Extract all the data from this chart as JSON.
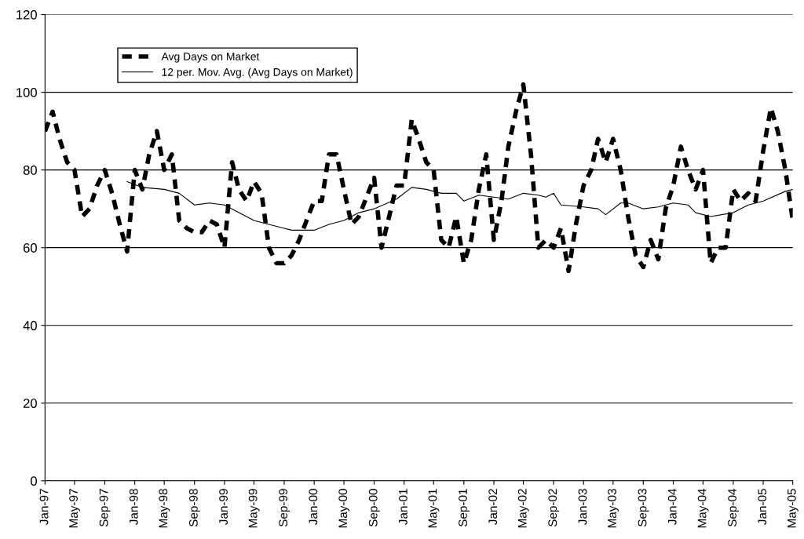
{
  "chart_data": {
    "type": "line",
    "x": [
      "1997-01",
      "1997-02",
      "1997-03",
      "1997-04",
      "1997-05",
      "1997-06",
      "1997-07",
      "1997-08",
      "1997-09",
      "1997-10",
      "1997-11",
      "1997-12",
      "1998-01",
      "1998-02",
      "1998-03",
      "1998-04",
      "1998-05",
      "1998-06",
      "1998-07",
      "1998-08",
      "1998-09",
      "1998-10",
      "1998-11",
      "1998-12",
      "1999-01",
      "1999-02",
      "1999-03",
      "1999-04",
      "1999-05",
      "1999-06",
      "1999-07",
      "1999-08",
      "1999-09",
      "1999-10",
      "1999-11",
      "1999-12",
      "2000-01",
      "2000-02",
      "2000-03",
      "2000-04",
      "2000-05",
      "2000-06",
      "2000-07",
      "2000-08",
      "2000-09",
      "2000-10",
      "2000-11",
      "2000-12",
      "2001-01",
      "2001-02",
      "2001-03",
      "2001-04",
      "2001-05",
      "2001-06",
      "2001-07",
      "2001-08",
      "2001-09",
      "2001-10",
      "2001-11",
      "2001-12",
      "2002-01",
      "2002-02",
      "2002-03",
      "2002-04",
      "2002-05",
      "2002-06",
      "2002-07",
      "2002-08",
      "2002-09",
      "2002-10",
      "2002-11",
      "2002-12",
      "2003-01",
      "2003-02",
      "2003-03",
      "2003-04",
      "2003-05",
      "2003-06",
      "2003-07",
      "2003-08",
      "2003-09",
      "2003-10",
      "2003-11",
      "2003-12",
      "2004-01",
      "2004-02",
      "2004-03",
      "2004-04",
      "2004-05",
      "2004-06",
      "2004-07",
      "2004-08",
      "2004-09",
      "2004-10",
      "2004-11",
      "2004-12",
      "2005-01",
      "2005-02",
      "2005-03",
      "2005-04",
      "2005-05"
    ],
    "series": [
      {
        "name": "Avg Days on Market",
        "color": "#000000",
        "line_style": "dashed",
        "values": [
          90,
          95,
          88,
          82,
          80,
          68,
          70,
          76,
          80,
          74,
          66,
          59,
          80,
          75,
          84,
          90,
          80,
          84,
          67,
          65,
          64,
          64,
          67,
          66,
          60,
          82,
          75,
          72,
          77,
          74,
          60,
          56,
          56,
          58,
          62,
          67,
          72,
          72,
          84,
          84,
          75,
          66,
          68,
          73,
          78,
          60,
          68,
          76,
          76,
          93,
          88,
          82,
          80,
          62,
          60,
          68,
          56,
          62,
          75,
          84,
          62,
          72,
          86,
          95,
          102,
          84,
          60,
          62,
          60,
          65,
          54,
          66,
          76,
          80,
          88,
          82,
          88,
          80,
          68,
          58,
          55,
          62,
          57,
          70,
          76,
          86,
          80,
          75,
          80,
          56,
          60,
          60,
          75,
          72,
          74,
          72,
          85,
          96,
          90,
          80,
          67
        ]
      },
      {
        "name": "12 per. Mov. Avg. (Avg Days on Market)",
        "color": "#000000",
        "line_style": "solid",
        "x": [
          "1997-12",
          "1998-02",
          "1998-05",
          "1998-07",
          "1998-09",
          "1998-11",
          "1999-01",
          "1999-03",
          "1999-05",
          "1999-07",
          "1999-09",
          "1999-10",
          "2000-01",
          "2000-03",
          "2000-05",
          "2000-07",
          "2000-09",
          "2000-12",
          "2001-02",
          "2001-04",
          "2001-06",
          "2001-08",
          "2001-09",
          "2001-11",
          "2002-01",
          "2002-03",
          "2002-05",
          "2002-07",
          "2002-08",
          "2002-09",
          "2002-10",
          "2003-01",
          "2003-03",
          "2003-04",
          "2003-06",
          "2003-07",
          "2003-09",
          "2003-11",
          "2004-01",
          "2004-03",
          "2004-04",
          "2004-06",
          "2004-09",
          "2004-11",
          "2005-01",
          "2005-04",
          "2005-05"
        ],
        "values": [
          77,
          75.5,
          75,
          74,
          71,
          71.5,
          71,
          69,
          67,
          66,
          65,
          64.5,
          64.5,
          66,
          67,
          69,
          70,
          72.5,
          75.5,
          75,
          74,
          74,
          72,
          73.5,
          73,
          72.5,
          74,
          73.5,
          73,
          74,
          71,
          70.5,
          70,
          68.5,
          71.5,
          71.5,
          70,
          70.5,
          71.5,
          71,
          69,
          68,
          69,
          71,
          72,
          74.5,
          75
        ]
      }
    ],
    "xlim": [
      "1997-01",
      "2005-05"
    ],
    "xticks": [
      {
        "value": "1997-01",
        "label": "Jan-97"
      },
      {
        "value": "1997-05",
        "label": "May-97"
      },
      {
        "value": "1997-09",
        "label": "Sep-97"
      },
      {
        "value": "1998-01",
        "label": "Jan-98"
      },
      {
        "value": "1998-05",
        "label": "May-98"
      },
      {
        "value": "1998-09",
        "label": "Sep-98"
      },
      {
        "value": "1999-01",
        "label": "Jan-99"
      },
      {
        "value": "1999-05",
        "label": "May-99"
      },
      {
        "value": "1999-09",
        "label": "Sep-99"
      },
      {
        "value": "2000-01",
        "label": "Jan-00"
      },
      {
        "value": "2000-05",
        "label": "May-00"
      },
      {
        "value": "2000-09",
        "label": "Sep-00"
      },
      {
        "value": "2001-01",
        "label": "Jan-01"
      },
      {
        "value": "2001-05",
        "label": "May-01"
      },
      {
        "value": "2001-09",
        "label": "Sep-01"
      },
      {
        "value": "2002-01",
        "label": "Jan-02"
      },
      {
        "value": "2002-05",
        "label": "May-02"
      },
      {
        "value": "2002-09",
        "label": "Sep-02"
      },
      {
        "value": "2003-01",
        "label": "Jan-03"
      },
      {
        "value": "2003-05",
        "label": "May-03"
      },
      {
        "value": "2003-09",
        "label": "Sep-03"
      },
      {
        "value": "2004-01",
        "label": "Jan-04"
      },
      {
        "value": "2004-05",
        "label": "May-04"
      },
      {
        "value": "2004-09",
        "label": "Sep-04"
      },
      {
        "value": "2005-01",
        "label": "Jan-05"
      },
      {
        "value": "2005-05",
        "label": "May-05"
      }
    ],
    "ylim": [
      0,
      120
    ],
    "yticks": [
      0,
      20,
      40,
      60,
      80,
      100,
      120
    ],
    "grid": "y",
    "legend": "top left"
  }
}
